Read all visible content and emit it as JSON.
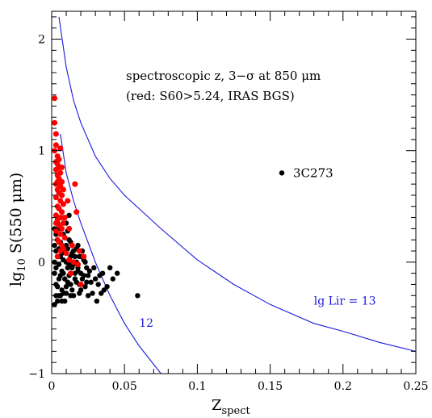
{
  "chart_data": {
    "type": "scatter",
    "title": "",
    "xlabel": {
      "main": "Z",
      "sub": "spect"
    },
    "ylabel": {
      "main": "lg",
      "sub": "10",
      "rest": " S(550 μm)"
    },
    "xlim": [
      0,
      0.25
    ],
    "ylim": [
      -1,
      2.25
    ],
    "x_ticks": [
      0,
      0.05,
      0.1,
      0.15,
      0.2,
      0.25
    ],
    "x_tick_labels": [
      "0",
      "0.05",
      "0.1",
      "0.15",
      "0.2",
      "0.25"
    ],
    "y_ticks": [
      -1,
      0,
      1,
      2
    ],
    "y_tick_labels": [
      "−1",
      "0",
      "1",
      "2"
    ],
    "grid": false,
    "annotations": [
      "spectroscopic z, 3−σ at 850 μm",
      "(red: S60>5.24, IRAS BGS)"
    ],
    "point_label": {
      "text": "3C273",
      "x": 0.158,
      "y": 0.8
    },
    "colors": {
      "black_points": "#000000",
      "red_points": "#ff0000",
      "curves": "#1a1adb"
    },
    "curves": [
      {
        "label": "lg Lir = 13",
        "label_at": [
          0.18,
          -0.38
        ],
        "points": [
          [
            0.005,
            2.2
          ],
          [
            0.01,
            1.75
          ],
          [
            0.015,
            1.45
          ],
          [
            0.02,
            1.25
          ],
          [
            0.03,
            0.95
          ],
          [
            0.04,
            0.75
          ],
          [
            0.05,
            0.6
          ],
          [
            0.06,
            0.48
          ],
          [
            0.075,
            0.3
          ],
          [
            0.1,
            0.02
          ],
          [
            0.125,
            -0.2
          ],
          [
            0.15,
            -0.38
          ],
          [
            0.18,
            -0.55
          ],
          [
            0.2,
            -0.62
          ],
          [
            0.225,
            -0.72
          ],
          [
            0.25,
            -0.8
          ]
        ]
      },
      {
        "label": "12",
        "label_at": [
          0.06,
          -0.58
        ],
        "points": [
          [
            0.006,
            1.15
          ],
          [
            0.01,
            0.8
          ],
          [
            0.015,
            0.55
          ],
          [
            0.02,
            0.35
          ],
          [
            0.03,
            0.0
          ],
          [
            0.04,
            -0.3
          ],
          [
            0.05,
            -0.55
          ],
          [
            0.06,
            -0.75
          ],
          [
            0.075,
            -1.0
          ]
        ]
      }
    ],
    "series": [
      {
        "color": "red",
        "points": [
          [
            0.002,
            1.47
          ],
          [
            0.002,
            1.25
          ],
          [
            0.003,
            1.15
          ],
          [
            0.003,
            1.05
          ],
          [
            0.002,
            1.0
          ],
          [
            0.004,
            0.95
          ],
          [
            0.003,
            0.9
          ],
          [
            0.004,
            0.88
          ],
          [
            0.005,
            0.85
          ],
          [
            0.003,
            0.83
          ],
          [
            0.006,
            0.8
          ],
          [
            0.004,
            0.78
          ],
          [
            0.005,
            0.75
          ],
          [
            0.007,
            0.72
          ],
          [
            0.003,
            0.7
          ],
          [
            0.006,
            0.68
          ],
          [
            0.004,
            0.65
          ],
          [
            0.005,
            0.62
          ],
          [
            0.007,
            0.6
          ],
          [
            0.003,
            0.58
          ],
          [
            0.006,
            0.55
          ],
          [
            0.008,
            0.52
          ],
          [
            0.004,
            0.5
          ],
          [
            0.005,
            0.48
          ],
          [
            0.007,
            0.45
          ],
          [
            0.003,
            0.42
          ],
          [
            0.006,
            0.4
          ],
          [
            0.004,
            0.38
          ],
          [
            0.008,
            0.35
          ],
          [
            0.005,
            0.33
          ],
          [
            0.007,
            0.3
          ],
          [
            0.003,
            0.28
          ],
          [
            0.006,
            0.25
          ],
          [
            0.009,
            0.22
          ],
          [
            0.004,
            0.2
          ],
          [
            0.005,
            0.18
          ],
          [
            0.007,
            0.15
          ],
          [
            0.008,
            0.12
          ],
          [
            0.006,
            0.1
          ],
          [
            0.01,
            0.08
          ],
          [
            0.004,
            0.05
          ],
          [
            0.012,
            0.02
          ],
          [
            0.015,
            0.0
          ],
          [
            0.018,
            -0.02
          ],
          [
            0.02,
            -0.2
          ],
          [
            0.017,
            0.45
          ],
          [
            0.016,
            0.7
          ],
          [
            0.012,
            0.3
          ],
          [
            0.009,
            0.4
          ],
          [
            0.014,
            0.15
          ],
          [
            0.011,
            0.55
          ],
          [
            0.008,
            0.65
          ],
          [
            0.007,
            0.85
          ],
          [
            0.005,
            0.92
          ],
          [
            0.006,
            1.02
          ],
          [
            0.004,
            0.72
          ],
          [
            0.003,
            0.35
          ],
          [
            0.013,
            -0.1
          ],
          [
            0.019,
            0.1
          ],
          [
            0.022,
            0.05
          ]
        ],
        "size": 3.5
      },
      {
        "color": "black",
        "points": [
          [
            0.158,
            0.8
          ],
          [
            0.059,
            -0.3
          ],
          [
            0.045,
            -0.1
          ],
          [
            0.04,
            -0.05
          ],
          [
            0.036,
            -0.25
          ],
          [
            0.033,
            -0.12
          ],
          [
            0.03,
            -0.15
          ],
          [
            0.026,
            -0.08
          ],
          [
            0.025,
            -0.3
          ],
          [
            0.024,
            -0.05
          ],
          [
            0.022,
            -0.12
          ],
          [
            0.02,
            -0.1
          ],
          [
            0.019,
            -0.2
          ],
          [
            0.018,
            -0.05
          ],
          [
            0.016,
            -0.15
          ],
          [
            0.014,
            -0.25
          ],
          [
            0.013,
            -0.3
          ],
          [
            0.012,
            -0.02
          ],
          [
            0.011,
            -0.18
          ],
          [
            0.01,
            -0.28
          ],
          [
            0.009,
            -0.35
          ],
          [
            0.008,
            -0.1
          ],
          [
            0.007,
            -0.25
          ],
          [
            0.006,
            -0.3
          ],
          [
            0.005,
            -0.15
          ],
          [
            0.004,
            -0.35
          ],
          [
            0.003,
            -0.2
          ],
          [
            0.002,
            -0.38
          ],
          [
            0.002,
            -0.1
          ],
          [
            0.003,
            0.1
          ],
          [
            0.004,
            0.2
          ],
          [
            0.005,
            0.3
          ],
          [
            0.006,
            0.05
          ],
          [
            0.007,
            0.15
          ],
          [
            0.008,
            0.25
          ],
          [
            0.009,
            0.1
          ],
          [
            0.01,
            0.0
          ],
          [
            0.011,
            0.12
          ],
          [
            0.012,
            0.2
          ],
          [
            0.013,
            0.05
          ],
          [
            0.014,
            -0.05
          ],
          [
            0.015,
            0.1
          ],
          [
            0.016,
            -0.1
          ],
          [
            0.017,
            0.0
          ],
          [
            0.018,
            0.15
          ],
          [
            0.02,
            0.05
          ],
          [
            0.021,
            -0.15
          ],
          [
            0.023,
            -0.22
          ],
          [
            0.027,
            -0.18
          ],
          [
            0.029,
            -0.05
          ],
          [
            0.032,
            -0.2
          ],
          [
            0.035,
            -0.1
          ],
          [
            0.038,
            -0.22
          ],
          [
            0.042,
            -0.15
          ],
          [
            0.002,
            0.0
          ],
          [
            0.003,
            -0.05
          ],
          [
            0.004,
            0.05
          ],
          [
            0.005,
            -0.02
          ],
          [
            0.006,
            0.18
          ],
          [
            0.007,
            -0.08
          ],
          [
            0.008,
            0.02
          ],
          [
            0.009,
            -0.15
          ],
          [
            0.01,
            0.15
          ],
          [
            0.011,
            -0.05
          ],
          [
            0.012,
            -0.12
          ],
          [
            0.013,
            0.18
          ],
          [
            0.014,
            0.08
          ],
          [
            0.015,
            -0.02
          ],
          [
            0.016,
            0.05
          ],
          [
            0.017,
            -0.18
          ],
          [
            0.018,
            -0.08
          ],
          [
            0.019,
            0.05
          ],
          [
            0.02,
            -0.25
          ],
          [
            0.022,
            0.02
          ],
          [
            0.024,
            -0.18
          ],
          [
            0.002,
            0.15
          ],
          [
            0.003,
            0.25
          ],
          [
            0.004,
            -0.22
          ],
          [
            0.005,
            0.12
          ],
          [
            0.006,
            -0.12
          ],
          [
            0.007,
            0.08
          ],
          [
            0.008,
            -0.28
          ],
          [
            0.009,
            0.22
          ],
          [
            0.01,
            -0.22
          ],
          [
            0.011,
            0.28
          ],
          [
            0.013,
            -0.2
          ],
          [
            0.015,
            -0.3
          ],
          [
            0.017,
            0.12
          ],
          [
            0.019,
            -0.28
          ],
          [
            0.021,
            0.1
          ],
          [
            0.023,
            0.0
          ],
          [
            0.025,
            -0.12
          ],
          [
            0.028,
            -0.28
          ],
          [
            0.031,
            -0.35
          ],
          [
            0.034,
            -0.28
          ],
          [
            0.003,
            -0.3
          ],
          [
            0.005,
            -0.3
          ],
          [
            0.007,
            -0.35
          ],
          [
            0.002,
            0.3
          ],
          [
            0.004,
            0.35
          ],
          [
            0.006,
            0.3
          ],
          [
            0.008,
            0.4
          ],
          [
            0.01,
            0.35
          ],
          [
            0.012,
            0.42
          ]
        ],
        "size": 3.2
      }
    ]
  }
}
